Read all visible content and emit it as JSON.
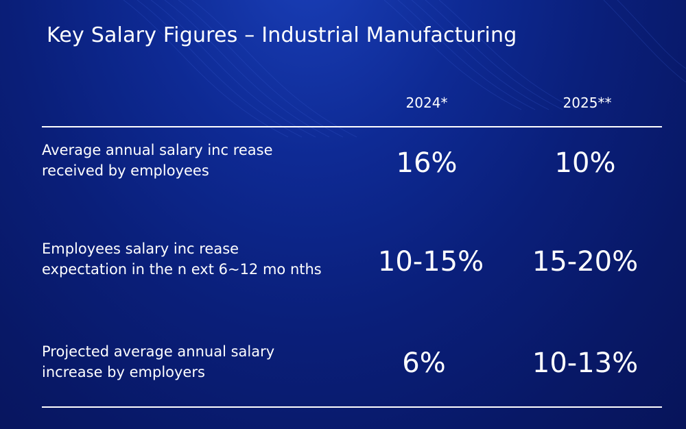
{
  "title": "Key Salary Figures – Industrial Manufacturing",
  "columns": [
    "2024*",
    "2025**"
  ],
  "rows": [
    {
      "label_line1": "Average annual salary inc rease",
      "label_line2": "received by employees",
      "values": [
        "16%",
        "10%"
      ]
    },
    {
      "label_line1": "Employees salary inc rease",
      "label_line2": "expectation in the n ext 6~12 mo nths",
      "values": [
        "10-15%",
        "15-20%"
      ]
    },
    {
      "label_line1": "Projected average annual salary",
      "label_line2": "increase by employers",
      "values": [
        "6%",
        "10-13%"
      ]
    }
  ],
  "colors": {
    "background": "#0a1f7a",
    "text": "#ffffff"
  }
}
